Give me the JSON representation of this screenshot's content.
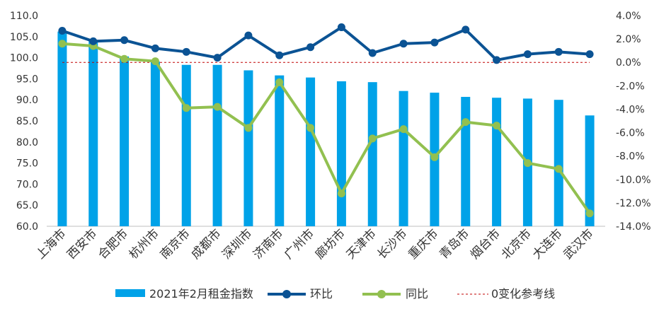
{
  "chart_data": {
    "type": "bar+line",
    "categories": [
      "上海市",
      "西安市",
      "合肥市",
      "杭州市",
      "南京市",
      "成都市",
      "深圳市",
      "济南市",
      "广州市",
      "廊坊市",
      "天津市",
      "长沙市",
      "重庆市",
      "青岛市",
      "烟台市",
      "北京市",
      "大连市",
      "武汉市"
    ],
    "series": [
      {
        "name": "2021年2月租金指数",
        "type": "bar",
        "axis": "left",
        "color": "#00a2e8",
        "values": [
          106.2,
          104.0,
          100.3,
          99.1,
          98.3,
          98.3,
          97.0,
          95.8,
          95.3,
          94.4,
          94.2,
          92.1,
          91.7,
          90.7,
          90.5,
          90.3,
          90.0,
          86.3
        ]
      },
      {
        "name": "环比",
        "type": "line",
        "axis": "right",
        "color": "#0b5394",
        "values": [
          2.7,
          1.8,
          1.9,
          1.2,
          0.9,
          0.4,
          2.3,
          0.6,
          1.3,
          3.0,
          0.8,
          1.6,
          1.7,
          2.8,
          0.2,
          0.7,
          0.9,
          0.7
        ]
      },
      {
        "name": "同比",
        "type": "line",
        "axis": "right",
        "color": "#92c050",
        "values": [
          1.6,
          1.4,
          0.3,
          0.1,
          -3.9,
          -3.8,
          -5.6,
          -1.7,
          -5.6,
          -11.2,
          -6.5,
          -5.7,
          -8.1,
          -5.1,
          -5.4,
          -8.6,
          -9.1,
          -12.9
        ]
      }
    ],
    "reference_line": {
      "name": "0变化参考线",
      "value": 0,
      "axis": "right",
      "color": "#c00000"
    },
    "y_left": {
      "min": 60,
      "max": 110,
      "step": 5,
      "ticks": [
        "60.0",
        "65.0",
        "70.0",
        "75.0",
        "80.0",
        "85.0",
        "90.0",
        "95.0",
        "100.0",
        "105.0",
        "110.0"
      ]
    },
    "y_right": {
      "min": -14,
      "max": 4,
      "step": 2,
      "ticks": [
        "-14.0%",
        "-12.0%",
        "-10.0%",
        "-8.0%",
        "-6.0%",
        "-4.0%",
        "-2.0%",
        "0.0%",
        "2.0%",
        "4.0%"
      ]
    },
    "legend": {
      "position": "bottom"
    },
    "grid": false
  }
}
